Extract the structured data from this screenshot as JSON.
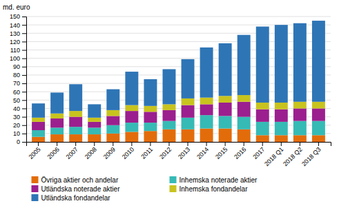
{
  "chart_data": {
    "type": "bar",
    "stacked": true,
    "ylabel": "md. euro",
    "categories": [
      "2005",
      "2006",
      "2007",
      "2008",
      "2009",
      "2010",
      "2011",
      "2012",
      "2013",
      "2014",
      "2015",
      "2016",
      "2017",
      "2018 Q1",
      "2018 Q2",
      "2018 Q3"
    ],
    "series": [
      {
        "name": "Övriga aktier och andelar",
        "color": "#e36c0a",
        "values": [
          6,
          9,
          9,
          9,
          10,
          12,
          13,
          15,
          15,
          16,
          16,
          15,
          8,
          8,
          8,
          8
        ]
      },
      {
        "name": "Inhemska noterade aktier",
        "color": "#36bab5",
        "values": [
          8,
          8,
          9,
          8,
          10,
          11,
          10,
          10,
          14,
          16,
          15,
          15,
          16,
          16,
          17,
          17
        ]
      },
      {
        "name": "Utländska noterade aktier",
        "color": "#9b1f8e",
        "values": [
          10,
          11,
          12,
          7,
          11,
          14,
          13,
          13,
          15,
          13,
          16,
          18,
          15,
          15,
          15,
          15
        ]
      },
      {
        "name": "Inhemska fondandelar",
        "color": "#c8c31e",
        "values": [
          5,
          6,
          7,
          5,
          7,
          7,
          7,
          7,
          8,
          8,
          8,
          8,
          8,
          8,
          8,
          8
        ]
      },
      {
        "name": "Utländska fondandelar",
        "color": "#2e75b6",
        "values": [
          17,
          25,
          32,
          16,
          25,
          40,
          32,
          42,
          47,
          60,
          63,
          72,
          91,
          93,
          94,
          97
        ]
      }
    ],
    "ylim": [
      0,
      150
    ],
    "yticks": [
      0,
      10,
      20,
      30,
      40,
      50,
      60,
      70,
      80,
      90,
      100,
      110,
      120,
      130,
      140,
      150
    ],
    "grid": true,
    "legend": "bottom"
  }
}
